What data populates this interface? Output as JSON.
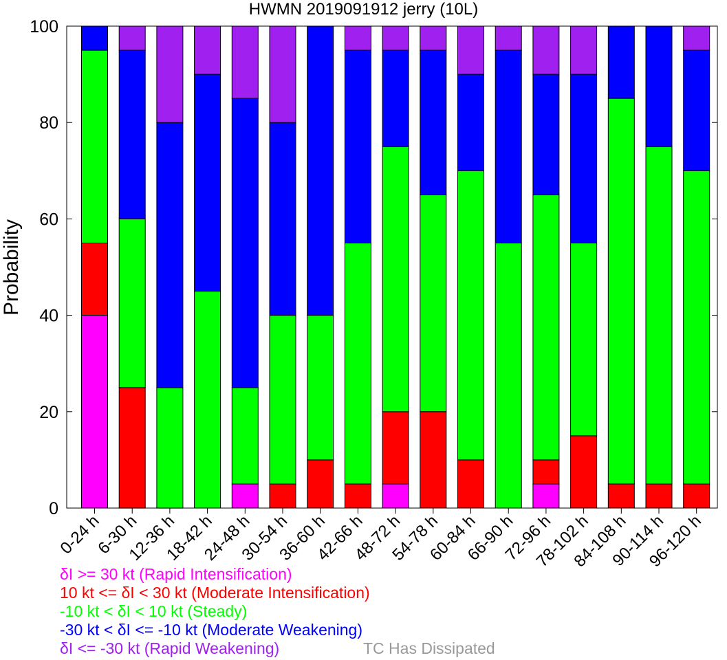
{
  "chart_data": {
    "type": "bar",
    "stacked": true,
    "title": "HWMN 2019091912 jerry (10L)",
    "ylabel": "Probability",
    "xlabel": "",
    "ylim": [
      0,
      100
    ],
    "yticks": [
      0,
      20,
      40,
      60,
      80,
      100
    ],
    "grid": false,
    "legend_position": "bottom-left",
    "categories": [
      "0-24 h",
      "6-30 h",
      "12-36 h",
      "18-42 h",
      "24-48 h",
      "30-54 h",
      "36-60 h",
      "42-66 h",
      "48-72 h",
      "54-78 h",
      "60-84 h",
      "66-90 h",
      "72-96 h",
      "78-102 h",
      "84-108 h",
      "90-114 h",
      "96-120 h"
    ],
    "series": [
      {
        "name": "δI >= 30 kt (Rapid Intensification)",
        "color": "#ff00ff",
        "values": [
          40,
          0,
          0,
          0,
          5,
          0,
          0,
          0,
          5,
          0,
          0,
          0,
          5,
          0,
          0,
          0,
          0
        ]
      },
      {
        "name": "10 kt <= δI < 30 kt (Moderate Intensification)",
        "color": "#ff0000",
        "values": [
          15,
          25,
          0,
          0,
          0,
          5,
          10,
          5,
          15,
          20,
          10,
          0,
          5,
          15,
          5,
          5,
          5
        ]
      },
      {
        "name": "-10 kt < δI < 10 kt (Steady)",
        "color": "#00ff00",
        "values": [
          40,
          35,
          25,
          45,
          20,
          35,
          30,
          50,
          55,
          45,
          60,
          55,
          55,
          40,
          80,
          70,
          65
        ]
      },
      {
        "name": "-30 kt < δI <= -10 kt (Moderate Weakening)",
        "color": "#0000ff",
        "values": [
          5,
          35,
          55,
          45,
          60,
          40,
          60,
          40,
          20,
          30,
          20,
          40,
          25,
          35,
          15,
          25,
          25
        ]
      },
      {
        "name": "δI <= -30 kt (Rapid Weakening)",
        "color": "#a020f0",
        "values": [
          0,
          5,
          20,
          10,
          15,
          20,
          0,
          5,
          5,
          5,
          10,
          5,
          10,
          10,
          0,
          0,
          5
        ]
      }
    ],
    "annotation": {
      "text": "TC Has Dissipated",
      "color": "#999999"
    }
  }
}
